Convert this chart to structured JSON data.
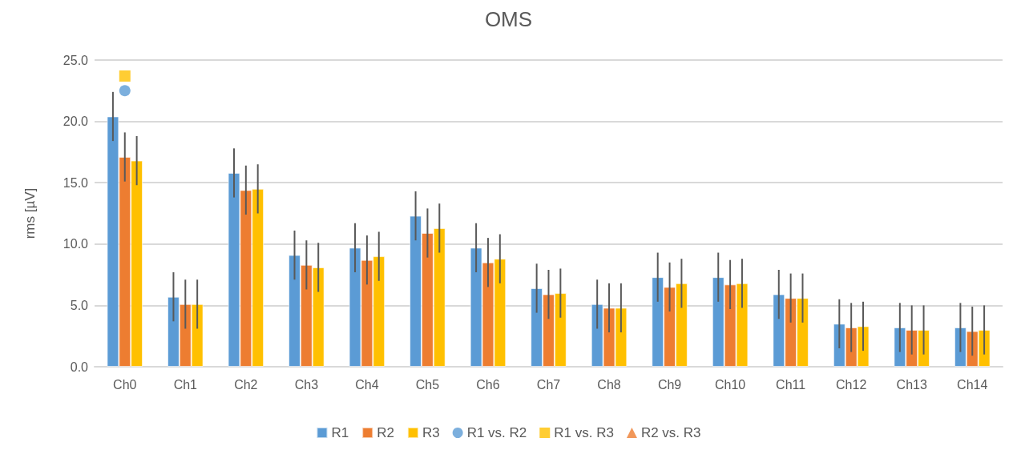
{
  "chart_data": {
    "type": "bar",
    "title": "OMS",
    "ylabel": "rms [µV]",
    "categories": [
      "Ch0",
      "Ch1",
      "Ch2",
      "Ch3",
      "Ch4",
      "Ch5",
      "Ch6",
      "Ch7",
      "Ch8",
      "Ch9",
      "Ch10",
      "Ch11",
      "Ch12",
      "Ch13",
      "Ch14"
    ],
    "series": [
      {
        "name": "R1",
        "color": "#5b9bd5",
        "values": [
          20.4,
          5.7,
          15.8,
          9.1,
          9.7,
          12.3,
          9.7,
          6.4,
          5.1,
          7.3,
          7.3,
          5.9,
          3.5,
          3.2,
          3.2
        ],
        "errors": [
          2,
          2,
          2,
          2,
          2,
          2,
          2,
          2,
          2,
          2,
          2,
          2,
          2,
          2,
          2
        ]
      },
      {
        "name": "R2",
        "color": "#ed7d31",
        "values": [
          17.1,
          5.1,
          14.4,
          8.3,
          8.7,
          10.9,
          8.5,
          5.9,
          4.8,
          6.5,
          6.7,
          5.6,
          3.2,
          3.0,
          2.9
        ],
        "errors": [
          2,
          2,
          2,
          2,
          2,
          2,
          2,
          2,
          2,
          2,
          2,
          2,
          2,
          2,
          2
        ]
      },
      {
        "name": "R3",
        "color": "#ffc000",
        "values": [
          16.8,
          5.1,
          14.5,
          8.1,
          9.0,
          11.3,
          8.8,
          6.0,
          4.8,
          6.8,
          6.8,
          5.6,
          3.3,
          3.0,
          3.0
        ],
        "errors": [
          2,
          2,
          2,
          2,
          2,
          2,
          2,
          2,
          2,
          2,
          2,
          2,
          2,
          2,
          2
        ]
      },
      {
        "name": "R1 vs. R2",
        "type": "scatter",
        "marker": "circle",
        "color": "#5b9bd5",
        "x": [
          "Ch0"
        ],
        "values": [
          22.5
        ]
      },
      {
        "name": "R1 vs. R3",
        "type": "scatter",
        "marker": "square",
        "color": "#ffc000",
        "x": [
          "Ch0"
        ],
        "values": [
          23.7
        ]
      },
      {
        "name": "R2 vs. R3",
        "type": "scatter",
        "marker": "triangle",
        "color": "#ed7d31",
        "values": [
          null,
          null,
          null,
          null,
          null,
          null,
          null,
          null,
          null,
          null,
          null,
          null,
          null,
          null,
          null
        ]
      }
    ],
    "ylim": [
      0,
      25
    ],
    "yticks": [
      {
        "value": 0,
        "label": "0.0"
      },
      {
        "value": 5,
        "label": "5.0"
      },
      {
        "value": 10,
        "label": "10.0"
      },
      {
        "value": 15,
        "label": "15.0"
      },
      {
        "value": 20,
        "label": "20.0"
      },
      {
        "value": 25,
        "label": "25.0"
      }
    ],
    "grid": "y",
    "legend": "bottom"
  }
}
